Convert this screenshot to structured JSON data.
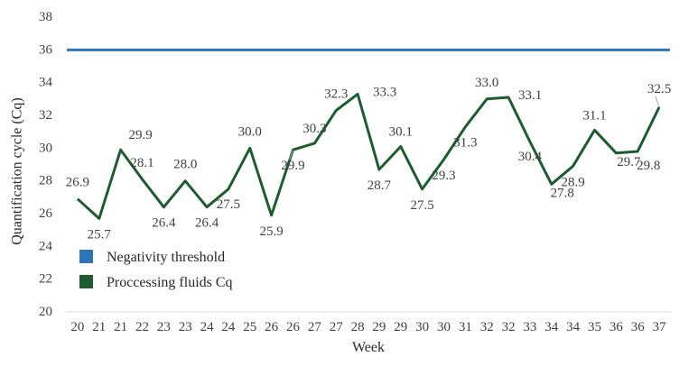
{
  "chart_data": {
    "type": "line",
    "title": "",
    "xlabel": "Week",
    "ylabel": "Quantification cycle (Cq)",
    "ylim": [
      20,
      38
    ],
    "yticks": [
      20,
      22,
      24,
      26,
      28,
      30,
      32,
      34,
      36,
      38
    ],
    "grid": false,
    "legend_position": "bottom-left",
    "categories": [
      "20",
      "21",
      "21",
      "22",
      "23",
      "23",
      "24",
      "24",
      "25",
      "26",
      "26",
      "27",
      "27",
      "28",
      "29",
      "29",
      "30",
      "30",
      "31",
      "32",
      "32",
      "33",
      "34",
      "34",
      "35",
      "36",
      "36",
      "37"
    ],
    "series": [
      {
        "name": "Negativity threshold",
        "color": "#2E75B6",
        "values": [
          36,
          36,
          36,
          36,
          36,
          36,
          36,
          36,
          36,
          36,
          36,
          36,
          36,
          36,
          36,
          36,
          36,
          36,
          36,
          36,
          36,
          36,
          36,
          36,
          36,
          36,
          36,
          36
        ]
      },
      {
        "name": "Proccessing fluids Cq",
        "color": "#1E5B2E",
        "values": [
          26.9,
          25.7,
          29.9,
          28.1,
          26.4,
          28.0,
          26.4,
          27.5,
          30.0,
          25.9,
          29.9,
          30.3,
          32.3,
          33.3,
          28.7,
          30.1,
          27.5,
          29.3,
          31.3,
          33.0,
          33.1,
          30.4,
          27.8,
          28.9,
          31.1,
          29.7,
          29.8,
          32.5
        ],
        "labels": [
          "26.9",
          "25.7",
          "29.9",
          "28.1",
          "26.4",
          "28.0",
          "26.4",
          "27.5",
          "30.0",
          "25.9",
          "29.9",
          "30.3",
          "32.3",
          "33.3",
          "28.7",
          "30.1",
          "27.5",
          "29.3",
          "31.3",
          "33.0",
          "33.1",
          "30.4",
          "27.8",
          "28.9",
          "31.1",
          "29.7",
          "29.8",
          "32.5"
        ]
      }
    ]
  }
}
